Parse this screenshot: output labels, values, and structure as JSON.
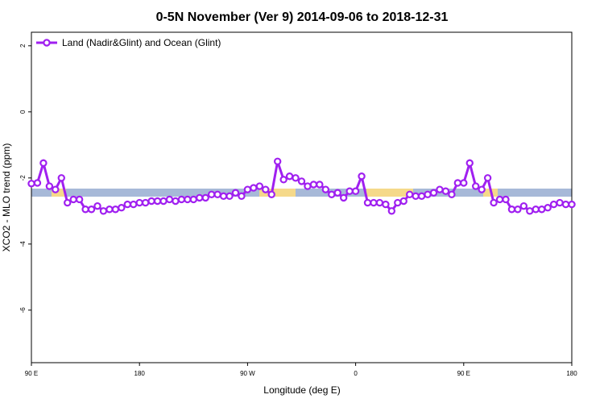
{
  "chart_data": {
    "type": "line",
    "title": "0-5N November (Ver 9)   2014-09-06 to 2018-12-31",
    "xlabel": "Longitude (deg E)",
    "ylabel": "XCO2 - MLO trend (ppm)",
    "x": [
      90,
      95,
      100,
      105,
      110,
      115,
      120,
      125,
      130,
      135,
      140,
      145,
      150,
      155,
      160,
      165,
      170,
      175,
      180,
      185,
      190,
      195,
      200,
      205,
      210,
      215,
      220,
      225,
      230,
      235,
      240,
      245,
      250,
      255,
      260,
      265,
      270,
      275,
      280,
      285,
      290,
      295,
      300,
      305,
      310,
      315,
      320,
      325,
      330,
      335,
      340,
      345,
      350,
      355,
      360,
      365,
      370,
      375,
      380,
      385,
      390,
      395,
      400,
      405,
      410,
      415,
      420,
      425,
      430,
      435,
      440,
      445,
      450,
      455,
      460,
      465,
      470,
      475,
      480,
      485,
      490,
      495,
      500,
      505,
      510,
      515,
      520,
      525,
      530,
      535,
      540
    ],
    "series": [
      {
        "name": "Land (Nadir&Glint) and Ocean (Glint)",
        "color": "#a020f0",
        "values": [
          -2.17,
          -2.15,
          -1.55,
          -2.25,
          -2.35,
          -2.0,
          -2.75,
          -2.65,
          -2.65,
          -2.95,
          -2.95,
          -2.85,
          -3.0,
          -2.95,
          -2.95,
          -2.9,
          -2.8,
          -2.8,
          -2.75,
          -2.75,
          -2.7,
          -2.7,
          -2.7,
          -2.65,
          -2.7,
          -2.65,
          -2.65,
          -2.65,
          -2.6,
          -2.6,
          -2.5,
          -2.5,
          -2.55,
          -2.55,
          -2.45,
          -2.55,
          -2.35,
          -2.3,
          -2.25,
          -2.35,
          -2.5,
          -1.5,
          -2.05,
          -1.95,
          -2.0,
          -2.1,
          -2.25,
          -2.2,
          -2.2,
          -2.35,
          -2.5,
          -2.45,
          -2.6,
          -2.4,
          -2.4,
          -1.95,
          -2.75,
          -2.75,
          -2.75,
          -2.8,
          -3.0,
          -2.75,
          -2.7,
          -2.5,
          -2.55,
          -2.55,
          -2.5,
          -2.45,
          -2.35,
          -2.4,
          -2.5,
          -2.15,
          -2.15,
          -1.55,
          -2.25,
          -2.35,
          -2.0,
          -2.75,
          -2.65,
          -2.65,
          -2.95,
          -2.95,
          -2.85,
          -3.0,
          -2.95,
          -2.95,
          -2.9,
          -2.8,
          -2.75,
          -2.8,
          -2.8
        ]
      }
    ],
    "xlim": [
      90,
      540
    ],
    "xticks": [
      {
        "value": 90,
        "label": "90 E"
      },
      {
        "value": 180,
        "label": "180"
      },
      {
        "value": 270,
        "label": "90 W"
      },
      {
        "value": 360,
        "label": "0"
      },
      {
        "value": 450,
        "label": "90 E"
      },
      {
        "value": 540,
        "label": "180"
      }
    ],
    "ylim": [
      -7.59,
      2.41
    ],
    "yticks": [
      2,
      0,
      -2,
      -4,
      -6
    ],
    "legend": "top-left"
  }
}
